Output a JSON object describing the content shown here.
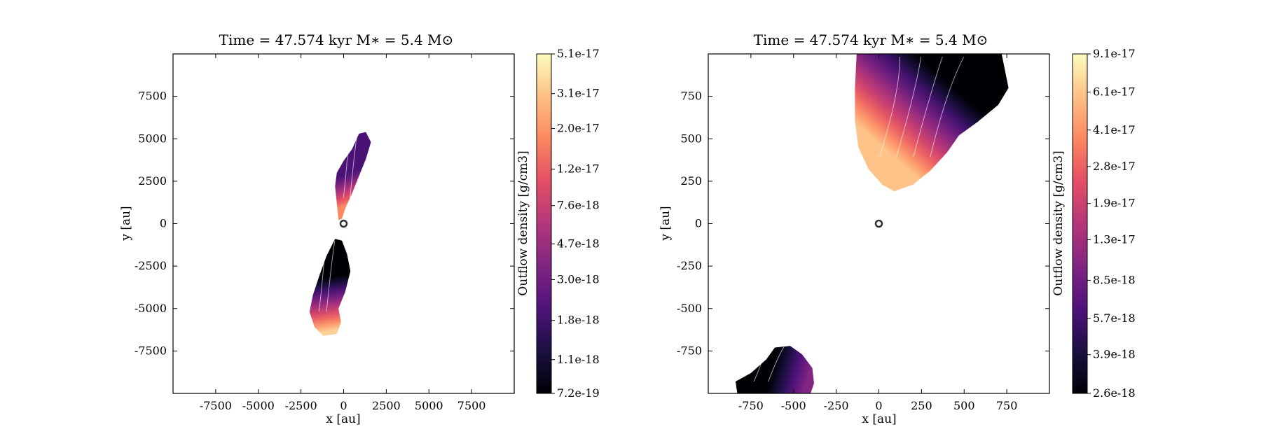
{
  "chart_data": [
    {
      "type": "heatmap",
      "title": "Time = 47.574 kyr    M∗ = 5.4 M⊙",
      "xlabel": "x [au]",
      "ylabel": "y [au]",
      "xlim": [
        -10000,
        10000
      ],
      "ylim": [
        -10000,
        10000
      ],
      "xticks": [
        -7500,
        -5000,
        -2500,
        0,
        2500,
        5000,
        7500
      ],
      "yticks": [
        -7500,
        -5000,
        -2500,
        0,
        2500,
        5000,
        7500
      ],
      "colorbar": {
        "label": "Outflow density [g/cm3]",
        "colormap": "magma",
        "scale": "log",
        "ticks": [
          "7.2e-19",
          "1.1e-18",
          "1.8e-18",
          "3.0e-18",
          "4.7e-18",
          "7.6e-18",
          "1.2e-17",
          "2.0e-17",
          "3.1e-17",
          "5.1e-17"
        ]
      },
      "star_position": [
        0,
        0
      ],
      "regions": [
        {
          "name": "upper lobe",
          "outline": [
            [
              -300,
              200
            ],
            [
              -400,
              1200
            ],
            [
              -500,
              2200
            ],
            [
              -400,
              3000
            ],
            [
              0,
              3700
            ],
            [
              500,
              4400
            ],
            [
              900,
              5300
            ],
            [
              1300,
              5400
            ],
            [
              1600,
              4800
            ],
            [
              1300,
              3800
            ],
            [
              900,
              2800
            ],
            [
              500,
              1800
            ],
            [
              100,
              900
            ],
            [
              -100,
              300
            ]
          ],
          "color_levels": [
            {
              "at": [
                0.2,
                0.5
              ],
              "value": "2.0e-18"
            },
            {
              "at": [
                0.5,
                0.8
              ],
              "value": "1.8e-17"
            }
          ]
        },
        {
          "name": "lower lobe",
          "outline": [
            [
              -500,
              -900
            ],
            [
              -1000,
              -1900
            ],
            [
              -1400,
              -3000
            ],
            [
              -1800,
              -4200
            ],
            [
              -2000,
              -5200
            ],
            [
              -1700,
              -6100
            ],
            [
              -1200,
              -6600
            ],
            [
              -400,
              -6500
            ],
            [
              -150,
              -5800
            ],
            [
              -300,
              -5000
            ],
            [
              100,
              -4000
            ],
            [
              400,
              -2800
            ],
            [
              200,
              -1800
            ],
            [
              -100,
              -1000
            ]
          ],
          "color_levels": [
            {
              "at": [
                0.4,
                0.4
              ],
              "value": "7.2e-19"
            },
            {
              "at": [
                0.6,
                0.95
              ],
              "value": "3.5e-17"
            }
          ]
        }
      ]
    },
    {
      "type": "heatmap",
      "title": "Time = 47.574 kyr    M∗ = 5.4 M⊙",
      "xlabel": "x [au]",
      "ylabel": "y [au]",
      "xlim": [
        -1000,
        1000
      ],
      "ylim": [
        -1000,
        1000
      ],
      "xticks": [
        -750,
        -500,
        -250,
        0,
        250,
        500,
        750
      ],
      "yticks": [
        -750,
        -500,
        -250,
        0,
        250,
        500,
        750
      ],
      "colorbar": {
        "label": "Outflow density [g/cm3]",
        "colormap": "magma",
        "scale": "log",
        "ticks": [
          "2.6e-18",
          "3.9e-18",
          "5.7e-18",
          "8.5e-18",
          "1.3e-17",
          "1.9e-17",
          "2.8e-17",
          "4.1e-17",
          "6.1e-17",
          "9.1e-17"
        ]
      },
      "star_position": [
        0,
        0
      ],
      "regions": [
        {
          "name": "upper lobe",
          "outline": [
            [
              -130,
              1000
            ],
            [
              -140,
              800
            ],
            [
              -140,
              600
            ],
            [
              -120,
              450
            ],
            [
              -60,
              320
            ],
            [
              20,
              230
            ],
            [
              90,
              190
            ],
            [
              200,
              230
            ],
            [
              300,
              310
            ],
            [
              400,
              420
            ],
            [
              470,
              520
            ],
            [
              580,
              600
            ],
            [
              700,
              700
            ],
            [
              760,
              800
            ],
            [
              740,
              900
            ],
            [
              720,
              1000
            ]
          ],
          "color_levels": [
            {
              "at": [
                0.5,
                0.1
              ],
              "value": "2.6e-18"
            },
            {
              "at": [
                0.1,
                0.6
              ],
              "value": "6.0e-17"
            }
          ]
        },
        {
          "name": "lower lobe",
          "outline": [
            [
              -830,
              -1000
            ],
            [
              -840,
              -930
            ],
            [
              -750,
              -880
            ],
            [
              -660,
              -800
            ],
            [
              -610,
              -730
            ],
            [
              -520,
              -720
            ],
            [
              -450,
              -770
            ],
            [
              -390,
              -850
            ],
            [
              -380,
              -940
            ],
            [
              -400,
              -1000
            ]
          ],
          "color_levels": [
            {
              "at": [
                0.45,
                0.6
              ],
              "value": "2.6e-18"
            },
            {
              "at": [
                0.9,
                0.8
              ],
              "value": "1.0e-17"
            }
          ]
        }
      ]
    }
  ]
}
